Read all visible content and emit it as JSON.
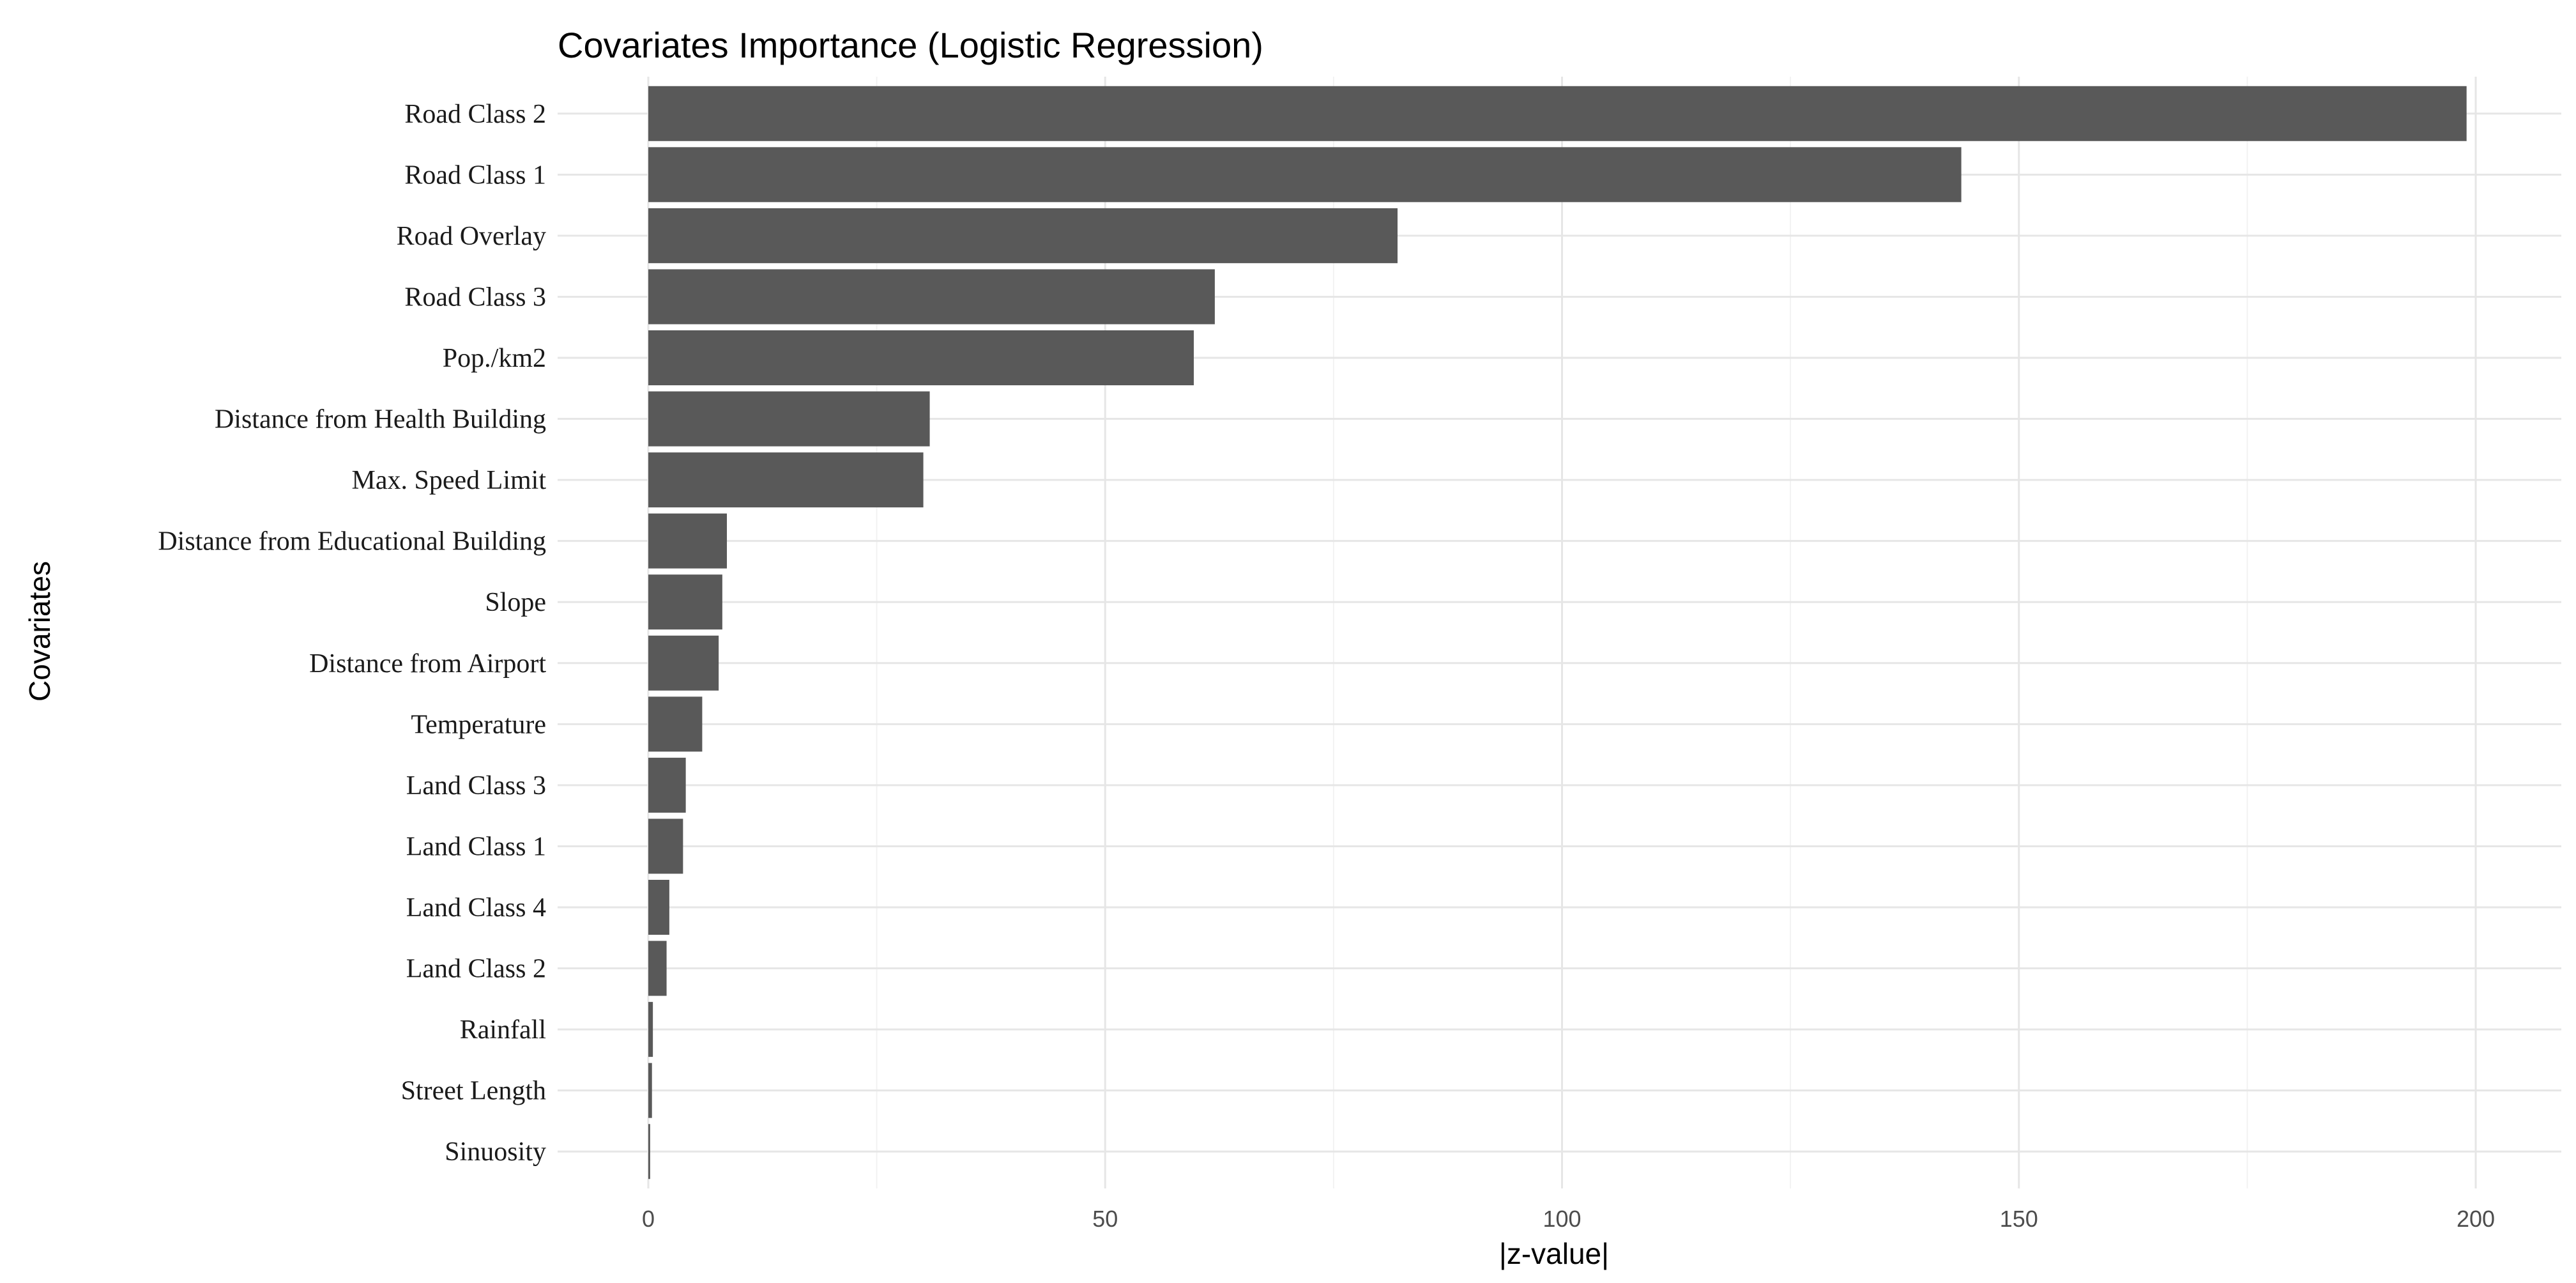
{
  "chart_data": {
    "type": "bar",
    "orientation": "horizontal",
    "title": "Covariates Importance (Logistic Regression)",
    "xlabel": "|z-value|",
    "ylabel": "Covariates",
    "xlim": [
      0,
      200
    ],
    "xticks": [
      0,
      50,
      100,
      150,
      200
    ],
    "grid": true,
    "bar_color": "#595959",
    "categories": [
      "Road Class 2",
      "Road Class 1",
      "Road Overlay",
      "Road Class 3",
      "Pop./km2",
      "Distance from Health Building",
      "Max. Speed Limit",
      "Distance from Educational Building",
      "Slope",
      "Distance from Airport",
      "Temperature",
      "Land Class 3",
      "Land Class 1",
      "Land Class 4",
      "Land Class 2",
      "Rainfall",
      "Street Length",
      "Sinuosity"
    ],
    "values": [
      199,
      143.7,
      82,
      62,
      59.7,
      30.8,
      30.1,
      8.6,
      8.1,
      7.7,
      5.9,
      4.1,
      3.8,
      2.3,
      2.0,
      0.5,
      0.4,
      0.2
    ]
  }
}
